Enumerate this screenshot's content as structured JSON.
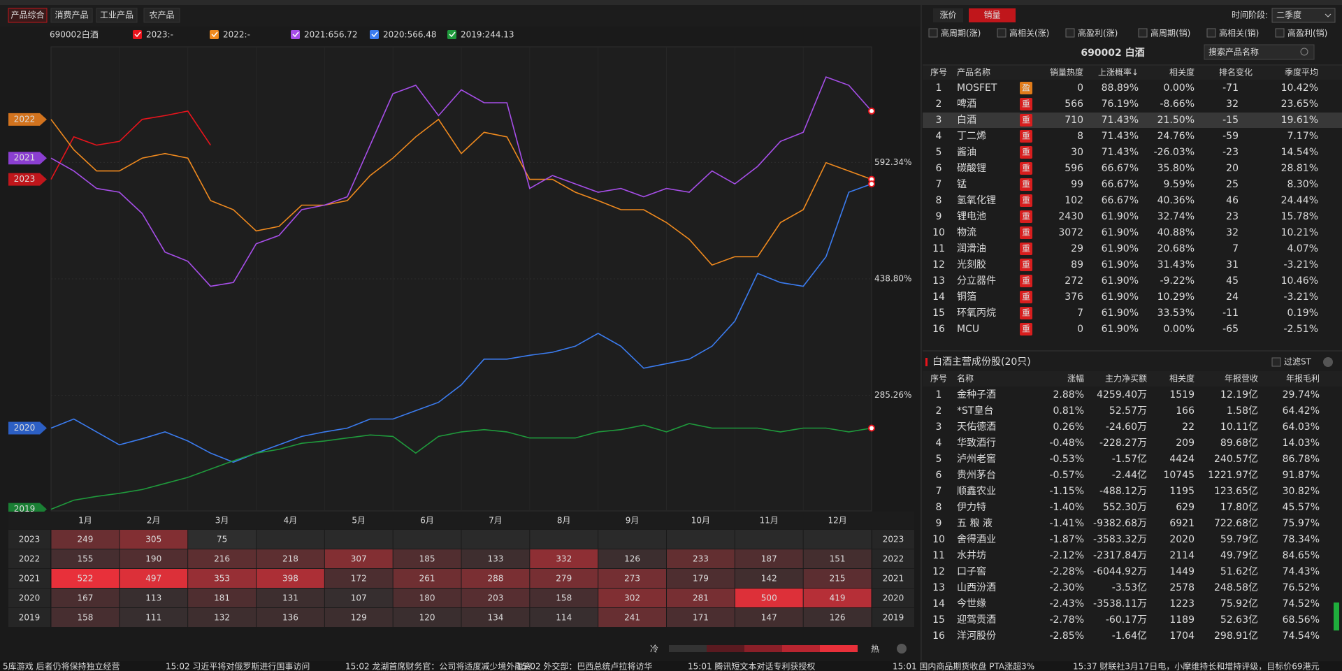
{
  "tabs": [
    "产品综合",
    "消费产品",
    "工业产品",
    "农产品"
  ],
  "chart": {
    "type": "line",
    "title": "690002白酒",
    "ylim": [
      132.8,
      744.7
    ],
    "yticks": [
      {
        "value": 285.26,
        "label": "285.26%"
      },
      {
        "value": 438.8,
        "label": "438.80%"
      },
      {
        "value": 592.34,
        "label": "592.34%"
      }
    ],
    "series": [
      {
        "name": "2023",
        "legend": "2023:-",
        "color": "#e8141c",
        "tag_color": "#c0161b",
        "values": [
          570,
          626,
          615,
          620,
          649,
          654,
          660,
          615,
          null,
          null,
          null,
          null,
          null,
          null,
          null,
          null,
          null,
          null,
          null,
          null,
          null,
          null,
          null,
          null,
          null,
          null,
          null,
          null,
          null,
          null,
          null,
          null,
          null,
          null,
          null,
          null,
          null
        ]
      },
      {
        "name": "2022",
        "legend": "2022:-",
        "color": "#f08a1e",
        "tag_color": "#d2731e",
        "values": [
          649,
          609,
          581,
          581,
          598,
          604,
          598,
          542,
          530,
          502,
          508,
          536,
          536,
          542,
          575,
          598,
          626,
          649,
          604,
          632,
          626,
          570,
          570,
          553,
          542,
          530,
          530,
          513,
          491,
          457,
          468,
          468,
          513,
          530,
          592,
          581,
          570
        ]
      },
      {
        "name": "2021",
        "legend": "2021:656.72",
        "color": "#a64ee8",
        "tag_color": "#8b3fd1",
        "values": [
          598,
          581,
          558,
          553,
          525,
          474,
          462,
          429,
          434,
          485,
          496,
          530,
          536,
          547,
          615,
          683,
          694,
          654,
          688,
          671,
          671,
          558,
          575,
          564,
          553,
          558,
          547,
          558,
          553,
          581,
          564,
          587,
          620,
          632,
          705,
          694,
          660
        ]
      },
      {
        "name": "2020",
        "legend": "2020:566.48",
        "color": "#3b7cf0",
        "tag_color": "#2c5fc4",
        "values": [
          242,
          254,
          237,
          220,
          228,
          237,
          225,
          209,
          197,
          209,
          220,
          231,
          237,
          242,
          254,
          254,
          265,
          276,
          299,
          333,
          333,
          338,
          342,
          350,
          367,
          350,
          321,
          327,
          333,
          350,
          383,
          446,
          434,
          429,
          468,
          553,
          564
        ]
      },
      {
        "name": "2019",
        "legend": "2019:244.13",
        "color": "#1f9a3c",
        "tag_color": "#1a7f34",
        "values": [
          135,
          147,
          152,
          156,
          161,
          169,
          177,
          188,
          199,
          209,
          214,
          222,
          225,
          229,
          233,
          231,
          209,
          231,
          237,
          240,
          237,
          229,
          229,
          229,
          237,
          240,
          246,
          237,
          248,
          242,
          242,
          242,
          237,
          242,
          242,
          237,
          242
        ]
      }
    ]
  },
  "heatmap": {
    "months": [
      "1月",
      "2月",
      "3月",
      "4月",
      "5月",
      "6月",
      "7月",
      "8月",
      "9月",
      "10月",
      "11月",
      "12月"
    ],
    "rows": [
      {
        "year": "2023",
        "values": [
          249,
          305,
          75,
          null,
          null,
          null,
          null,
          null,
          null,
          null,
          null,
          null
        ]
      },
      {
        "year": "2022",
        "values": [
          155,
          190,
          216,
          218,
          307,
          185,
          133,
          332,
          126,
          233,
          187,
          151
        ]
      },
      {
        "year": "2021",
        "values": [
          522,
          497,
          353,
          398,
          172,
          261,
          288,
          279,
          273,
          179,
          142,
          215
        ]
      },
      {
        "year": "2020",
        "values": [
          167,
          113,
          181,
          131,
          107,
          180,
          203,
          158,
          302,
          281,
          500,
          419
        ]
      },
      {
        "year": "2019",
        "values": [
          158,
          111,
          132,
          136,
          129,
          120,
          134,
          114,
          241,
          171,
          147,
          126
        ]
      }
    ],
    "cold": "冷",
    "hot": "热"
  },
  "right": {
    "tabs": [
      "涨价",
      "销量"
    ],
    "period_label": "时间阶段:",
    "period": "二季度",
    "filters": [
      "高周期(涨)",
      "高相关(涨)",
      "高盈利(涨)",
      "高周期(销)",
      "高相关(销)",
      "高盈利(销)"
    ],
    "title": "690002 白酒",
    "search": "搜索产品名称",
    "columns": [
      "序号",
      "产品名称",
      "销量热度",
      "上涨概率↓",
      "相关度",
      "排名变化",
      "季度平均"
    ],
    "rows": [
      [
        1,
        "MOSFET",
        "盈",
        0,
        "88.89%",
        "0.00%",
        -71,
        "10.42%"
      ],
      [
        2,
        "啤酒",
        "重",
        566,
        "76.19%",
        "-8.66%",
        32,
        "23.65%"
      ],
      [
        3,
        "白酒",
        "重",
        710,
        "71.43%",
        "21.50%",
        -15,
        "19.61%"
      ],
      [
        4,
        "丁二烯",
        "重",
        8,
        "71.43%",
        "24.76%",
        -59,
        "7.17%"
      ],
      [
        5,
        "酱油",
        "重",
        30,
        "71.43%",
        "-26.03%",
        -23,
        "14.54%"
      ],
      [
        6,
        "碳酸锂",
        "重",
        596,
        "66.67%",
        "35.80%",
        20,
        "28.81%"
      ],
      [
        7,
        "锰",
        "重",
        99,
        "66.67%",
        "9.59%",
        25,
        "8.30%"
      ],
      [
        8,
        "氢氧化锂",
        "重",
        102,
        "66.67%",
        "40.36%",
        46,
        "24.44%"
      ],
      [
        9,
        "锂电池",
        "重",
        2430,
        "61.90%",
        "32.74%",
        23,
        "15.78%"
      ],
      [
        10,
        "物流",
        "重",
        3072,
        "61.90%",
        "40.88%",
        32,
        "10.21%"
      ],
      [
        11,
        "润滑油",
        "重",
        29,
        "61.90%",
        "20.68%",
        7,
        "4.07%"
      ],
      [
        12,
        "光刻胶",
        "重",
        89,
        "61.90%",
        "31.43%",
        31,
        "-3.21%"
      ],
      [
        13,
        "分立器件",
        "重",
        272,
        "61.90%",
        "-9.22%",
        45,
        "10.46%"
      ],
      [
        14,
        "铜箔",
        "重",
        376,
        "61.90%",
        "10.29%",
        24,
        "-3.21%"
      ],
      [
        15,
        "环氧丙烷",
        "重",
        7,
        "61.90%",
        "33.53%",
        -11,
        "0.19%"
      ],
      [
        16,
        "MCU",
        "重",
        0,
        "61.90%",
        "0.00%",
        -65,
        "-2.51%"
      ]
    ],
    "stocks_title": "白酒主营成份股(20只)",
    "filter_st": "过滤ST",
    "stock_columns": [
      "序号",
      "名称",
      "涨幅",
      "主力净买额",
      "相关度",
      "年报营收",
      "年报毛利"
    ],
    "stocks": [
      [
        1,
        "金种子酒",
        "2.88%",
        "4259.40万",
        1519,
        "12.19亿",
        "29.74%"
      ],
      [
        2,
        "*ST皇台",
        "0.81%",
        "52.57万",
        166,
        "1.58亿",
        "64.42%"
      ],
      [
        3,
        "天佑德酒",
        "0.26%",
        "-24.60万",
        22,
        "10.11亿",
        "64.03%"
      ],
      [
        4,
        "华致酒行",
        "-0.48%",
        "-228.27万",
        209,
        "89.68亿",
        "14.03%"
      ],
      [
        5,
        "泸州老窖",
        "-0.53%",
        "-1.57亿",
        4424,
        "240.57亿",
        "86.78%"
      ],
      [
        6,
        "贵州茅台",
        "-0.57%",
        "-2.44亿",
        10745,
        "1221.97亿",
        "91.87%"
      ],
      [
        7,
        "顺鑫农业",
        "-1.15%",
        "-488.12万",
        1195,
        "123.65亿",
        "30.82%"
      ],
      [
        8,
        "伊力特",
        "-1.40%",
        "552.30万",
        629,
        "17.80亿",
        "45.57%"
      ],
      [
        9,
        "五 粮 液",
        "-1.41%",
        "-9382.68万",
        6921,
        "722.68亿",
        "75.97%"
      ],
      [
        10,
        "舍得酒业",
        "-1.87%",
        "-3583.32万",
        2020,
        "59.79亿",
        "78.34%"
      ],
      [
        11,
        "水井坊",
        "-2.12%",
        "-2317.84万",
        2114,
        "49.79亿",
        "84.65%"
      ],
      [
        12,
        "口子窖",
        "-2.28%",
        "-6044.92万",
        1449,
        "51.62亿",
        "74.43%"
      ],
      [
        13,
        "山西汾酒",
        "-2.30%",
        "-3.53亿",
        2578,
        "248.58亿",
        "76.52%"
      ],
      [
        14,
        "今世缘",
        "-2.43%",
        "-3538.11万",
        1223,
        "75.92亿",
        "74.52%"
      ],
      [
        15,
        "迎驾贡酒",
        "-2.78%",
        "-60.17万",
        1189,
        "52.63亿",
        "68.56%"
      ],
      [
        16,
        "洋河股份",
        "-2.85%",
        "-1.64亿",
        1704,
        "298.91亿",
        "74.54%"
      ]
    ]
  },
  "ticker": [
    "5库游戏 后者仍将保持独立经营",
    "15:02 习近平将对俄罗斯进行国事访问",
    "15:02 龙湖首席财务官：公司将适度减少境外融资",
    "15:02 外交部：巴西总统卢拉将访华",
    "15:01 腾讯短文本对话专利获授权",
    "15:01 国内商品期货收盘 PTA涨超3%",
    "15:37 财联社3月17日电，小摩维持长和增持评级，目标价69港元"
  ]
}
